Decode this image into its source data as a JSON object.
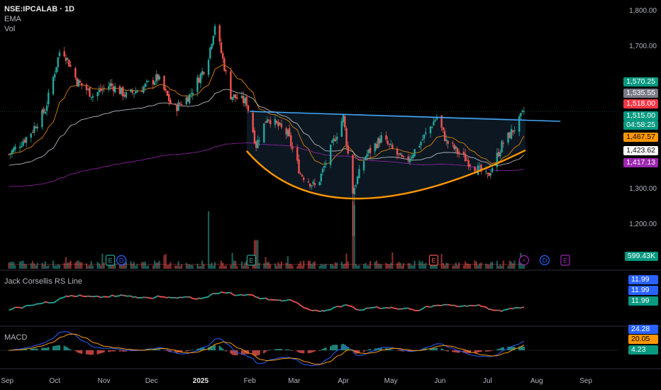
{
  "header": {
    "symbol": "NSE:IPCALAB · 1D",
    "line2": "EMA",
    "line3": "Vol"
  },
  "price_axis": {
    "ticks": [
      "1,800.00",
      "1,700.00",
      "1,300.00",
      "1,200.00"
    ]
  },
  "price_tags": [
    {
      "text": "1,570.25",
      "bg": "#089981",
      "fg": "#ffffff"
    },
    {
      "text": "1,535.55",
      "bg": "#787b86",
      "fg": "#ffffff"
    },
    {
      "text": "1,518.00",
      "bg": "#f23645",
      "fg": "#ffffff"
    },
    {
      "text": "1,515.00",
      "bg": "#089981",
      "fg": "#ffffff"
    },
    {
      "text": "04:58:25",
      "bg": "#089981",
      "fg": "#ffffff"
    },
    {
      "text": "1,467.57",
      "bg": "#ff9800",
      "fg": "#000000"
    },
    {
      "text": "1,423.62",
      "bg": "#ffffff",
      "fg": "#000000"
    },
    {
      "text": "1,417.13",
      "bg": "#9c27b0",
      "fg": "#ffffff"
    },
    {
      "text": "599.43K",
      "bg": "#089981",
      "fg": "#ffffff"
    }
  ],
  "rs_pane": {
    "label": "Jack Corsellis RS Line",
    "tags": [
      "11.99",
      "11.99",
      "11.99"
    ],
    "tag_colors": [
      "#2962ff",
      "#2962ff",
      "#089981"
    ]
  },
  "macd_pane": {
    "label": "MACD",
    "tags": [
      "24.28",
      "20.05",
      "4.23"
    ],
    "tag_colors": [
      "#2962ff",
      "#ff9800",
      "#089981"
    ]
  },
  "event_markers": [
    "E",
    "D",
    "E",
    "E",
    "⚡",
    "D",
    "E"
  ],
  "time_axis": {
    "labels": [
      "Sep",
      "Oct",
      "Nov",
      "Dec",
      "2025",
      "Feb",
      "Mar",
      "Apr",
      "May",
      "Jun",
      "Jul",
      "Aug",
      "Sep"
    ]
  },
  "colors": {
    "up": "#26a69a",
    "down": "#ef5350",
    "ema_fast": "#ff9800",
    "ema_mid": "#d1d4dc",
    "ema_slow": "#9c27b0",
    "neckline": "#42a5f5",
    "cup": "#ff9800"
  },
  "chart_data": {
    "type": "candlestick",
    "y_range": [
      1160,
      1820
    ],
    "x_range_dates": [
      "2024-09-01",
      "2025-09-15"
    ],
    "close_path": [
      [
        "2024-09-01",
        1390
      ],
      [
        "2024-09-15",
        1450
      ],
      [
        "2024-09-25",
        1520
      ],
      [
        "2024-10-05",
        1700
      ],
      [
        "2024-10-15",
        1600
      ],
      [
        "2024-10-25",
        1560
      ],
      [
        "2024-11-05",
        1590
      ],
      [
        "2024-11-15",
        1560
      ],
      [
        "2024-11-25",
        1580
      ],
      [
        "2024-12-05",
        1610
      ],
      [
        "2024-12-15",
        1520
      ],
      [
        "2024-12-25",
        1560
      ],
      [
        "2025-01-05",
        1650
      ],
      [
        "2025-01-10",
        1760
      ],
      [
        "2025-01-20",
        1560
      ],
      [
        "2025-01-30",
        1540
      ],
      [
        "2025-02-05",
        1420
      ],
      [
        "2025-02-12",
        1500
      ],
      [
        "2025-02-25",
        1450
      ],
      [
        "2025-03-05",
        1340
      ],
      [
        "2025-03-15",
        1300
      ],
      [
        "2025-03-25",
        1420
      ],
      [
        "2025-04-01",
        1500
      ],
      [
        "2025-04-07",
        1290
      ],
      [
        "2025-04-15",
        1390
      ],
      [
        "2025-04-25",
        1440
      ],
      [
        "2025-05-10",
        1370
      ],
      [
        "2025-05-20",
        1430
      ],
      [
        "2025-05-30",
        1500
      ],
      [
        "2025-06-05",
        1430
      ],
      [
        "2025-06-20",
        1370
      ],
      [
        "2025-07-01",
        1330
      ],
      [
        "2025-07-10",
        1420
      ],
      [
        "2025-07-20",
        1480
      ],
      [
        "2025-07-24",
        1515
      ]
    ],
    "volume_spikes_k": [
      [
        "2025-01-05",
        1800
      ],
      [
        "2025-04-07",
        2000
      ],
      [
        "2025-02-05",
        900
      ]
    ],
    "neckline": [
      [
        "2025-02-01",
        1515
      ],
      [
        "2025-08-16",
        1487
      ]
    ],
    "cup_curve": [
      [
        "2025-01-30",
        1404
      ],
      [
        "2025-04-10",
        1270
      ],
      [
        "2025-07-25",
        1406
      ]
    ]
  }
}
